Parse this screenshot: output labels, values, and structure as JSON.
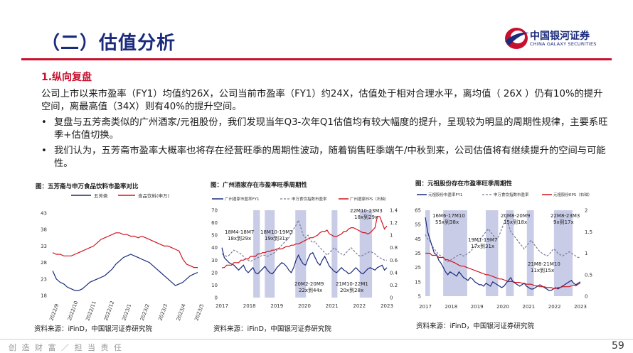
{
  "header": {
    "title": "（二）估值分析",
    "logo_cn": "中国银河证券",
    "logo_en": "CHINA GALAXY SECURITIES",
    "accent_color": "#c8102e",
    "title_color": "#1a2a7c"
  },
  "section_title": "1.纵向复盘",
  "paragraph": "公司上市以来市盈率（FY1）均值约26X，公司当前市盈率（FY1）约24X，估值处于相对合理水平，离均值（  26X  ）仍有10%的提升空间，离最高值（34X）则有40%的提升空间。",
  "bullets": [
    "复盘与五芳斋类似的广州酒家/元祖股份，我们发现当年Q3-次年Q1估值均有较大幅度的提升，呈现较为明显的周期性规律，主要系旺季+估值切换。",
    "我们认为，五芳斋市盈率大概率也将存在经营旺季的周期性波动，随着销售旺季端午/中秋到来，公司估值将有继续提升的空间与可能性。"
  ],
  "bullet_symbol": "•",
  "chart_data": [
    {
      "type": "line",
      "title": "图：五芳斋与申万食品饮料市盈率对比",
      "source": "资料来源：iFinD，中国银河证券研究院",
      "x_ticks": [
        "2022/9",
        "2022/10",
        "2022/11",
        "2022/12",
        "2023/1",
        "2023/2",
        "2023/3",
        "2023/4",
        "2023/5"
      ],
      "yticks": [
        "43",
        "38",
        "33",
        "28",
        "23",
        "18"
      ],
      "ylim": [
        18,
        43
      ],
      "series": [
        {
          "name": "五芳斋",
          "color": "#1a2a7c",
          "values": [
            25.5,
            23,
            22,
            21.5,
            20.5,
            20,
            19.5,
            19.5,
            20,
            21,
            22,
            22.5,
            23,
            23.5,
            24,
            25,
            26,
            27.5,
            28.5,
            29.5,
            30,
            30.5,
            30,
            29.5,
            29,
            28.5,
            28,
            27,
            26,
            25,
            24,
            23,
            22,
            21,
            21.5,
            22,
            23,
            24,
            24.5,
            25
          ]
        },
        {
          "name": "食品饮料(申万)",
          "color": "#d0141e",
          "values": [
            31,
            30.5,
            30.5,
            30,
            30,
            30,
            30.5,
            31,
            31.5,
            32,
            32.5,
            33,
            34,
            35,
            35.5,
            36,
            36.5,
            37,
            37,
            36.5,
            36.5,
            36,
            36,
            35.5,
            36,
            35.5,
            35,
            34.5,
            34,
            33.5,
            33,
            33,
            32.5,
            32,
            31.5,
            29,
            27.5,
            27,
            26.5,
            26.5
          ]
        }
      ]
    },
    {
      "type": "line",
      "title": "图：广州酒家存在市盈率旺季周期性",
      "source": "资料来源：iFinD，中国银河证券研究院",
      "x_ticks": [
        "2017",
        "2018",
        "2019",
        "2020",
        "2021",
        "2022",
        "2023"
      ],
      "yticks_left": [
        "70",
        "60",
        "50",
        "40",
        "30",
        "20",
        "10",
        "0"
      ],
      "yticks_right": [
        "1.4",
        "1.2",
        "1",
        "0.8",
        "0.6",
        "0.4",
        "0.2",
        "0"
      ],
      "ylim_left": [
        0,
        70
      ],
      "ylim_right": [
        0,
        1.4
      ],
      "series": [
        {
          "name": "广州酒家市盈率FY1",
          "color": "#1a2a7c",
          "values": [
            40,
            32,
            30,
            28,
            27,
            26,
            24,
            22,
            24,
            26,
            22,
            20,
            22,
            24,
            20,
            19,
            21,
            23,
            25,
            22,
            20,
            19,
            21,
            24,
            26,
            28,
            27,
            25,
            22,
            20,
            24,
            30,
            34,
            30,
            27,
            26,
            31,
            35,
            36,
            32,
            28,
            26,
            30,
            33,
            29,
            25,
            23,
            21,
            20,
            22,
            24,
            22,
            21,
            19,
            20,
            22,
            24,
            22,
            20,
            19,
            21,
            23,
            24,
            23,
            22,
            24,
            25,
            26,
            22,
            24
          ]
        },
        {
          "name": "申万食饮指数市盈率",
          "color": "#7a7a9a",
          "dash": true,
          "values": [
            35,
            34,
            33,
            34,
            36,
            38,
            37,
            36,
            35,
            33,
            31,
            30,
            29,
            30,
            31,
            32,
            33,
            34,
            34,
            33,
            34,
            35,
            36,
            38,
            40,
            42,
            44,
            46,
            48,
            52,
            55,
            58,
            62,
            56,
            50,
            48,
            50,
            46,
            44,
            45,
            42,
            40,
            38,
            36,
            34,
            36,
            38,
            40,
            38,
            36,
            35,
            34,
            36,
            38,
            40,
            38,
            36,
            34,
            33,
            34,
            35,
            36,
            37,
            36,
            35,
            33,
            32,
            31,
            30,
            30
          ]
        },
        {
          "name": "广州酒家EPS（右轴）",
          "color": "#d0141e",
          "values": [
            0.48,
            0.48,
            0.52,
            0.52,
            0.52,
            0.56,
            0.56,
            0.56,
            0.6,
            0.6,
            0.62,
            0.62,
            0.66,
            0.66,
            0.66,
            0.7,
            0.7,
            0.72,
            0.72,
            0.74,
            0.74,
            0.76,
            0.76,
            0.78,
            0.78,
            0.78,
            0.8,
            0.82,
            0.82,
            0.84,
            0.84,
            0.86,
            0.86,
            0.88,
            0.9,
            0.92,
            0.94,
            0.96,
            0.96,
            0.98,
            1.0,
            1.04,
            1.06,
            1.06,
            1.08,
            1.02,
            1.0,
            0.98,
            0.98,
            1.0,
            1.02,
            1.06,
            1.06,
            1.1,
            1.12,
            1.12,
            1.1,
            1.08,
            1.06,
            1.04,
            1.04,
            1.02,
            1.04,
            1.08,
            1.12,
            1.3,
            1.3,
            1.2,
            1.1,
            1.15
          ]
        }
      ],
      "annotations": [
        "22M10-23M3",
        "18x到29x",
        "18M4-18M7",
        "18x到29x",
        "18M10-19M3",
        "19x到31x",
        "20M2-20M9",
        "22x到44x",
        "21M10-22M1",
        "20x到28x"
      ]
    },
    {
      "type": "line",
      "title": "图：元祖股份存在市盈率旺季周期性",
      "source": "资料来源：iFinD，中国银河证券研究院",
      "x_ticks": [
        "2017",
        "2018",
        "2019",
        "2020",
        "2021",
        "2022",
        "2023"
      ],
      "yticks_left": [
        "65",
        "55",
        "45",
        "35",
        "25",
        "15",
        "5"
      ],
      "yticks_right": [
        "2",
        "1.5",
        "1",
        "0.5",
        "0"
      ],
      "ylim_left": [
        5,
        65
      ],
      "ylim_right": [
        0,
        2
      ],
      "series": [
        {
          "name": "元祖股份市盈率FY1",
          "color": "#1a2a7c",
          "values": [
            60,
            50,
            45,
            40,
            35,
            34,
            30,
            28,
            25,
            22,
            20,
            22,
            21,
            20,
            19,
            22,
            20,
            18,
            17,
            16,
            18,
            17,
            15,
            14,
            13,
            13,
            12,
            14,
            13,
            12,
            15,
            14,
            13,
            12,
            11,
            12,
            14,
            16,
            18,
            15,
            14,
            13,
            12,
            13,
            14,
            12,
            11,
            10,
            10,
            11,
            12,
            13,
            12,
            11,
            10,
            9,
            9,
            10,
            11,
            10,
            11,
            12,
            13,
            14,
            15,
            16,
            14,
            13,
            14,
            15
          ]
        },
        {
          "name": "申万食饮指数市盈率",
          "color": "#7a7a9a",
          "dash": true,
          "values": [
            48,
            45,
            44,
            40,
            38,
            36,
            34,
            33,
            32,
            30,
            29,
            30,
            31,
            32,
            33,
            34,
            34,
            33,
            34,
            35,
            36,
            38,
            40,
            42,
            44,
            46,
            48,
            50,
            52,
            50,
            48,
            46,
            45,
            48,
            52,
            56,
            60,
            55,
            50,
            48,
            46,
            44,
            42,
            40,
            38,
            40,
            42,
            44,
            42,
            40,
            38,
            36,
            35,
            34,
            33,
            34,
            36,
            38,
            37,
            35,
            34,
            33,
            34,
            35,
            36,
            35,
            34,
            33,
            32,
            32
          ]
        },
        {
          "name": "元祖股份EPS（右轴）",
          "color": "#d0141e",
          "values": [
            1.0,
            1.0,
            1.0,
            0.95,
            0.95,
            0.95,
            0.9,
            0.9,
            0.9,
            0.85,
            0.85,
            0.82,
            0.8,
            0.78,
            0.75,
            0.72,
            0.7,
            0.7,
            0.68,
            0.66,
            0.64,
            0.62,
            0.6,
            0.58,
            0.56,
            0.54,
            0.52,
            0.5,
            0.5,
            0.48,
            0.46,
            0.44,
            0.42,
            0.4,
            0.4,
            0.38,
            0.36,
            0.34,
            0.34,
            0.34,
            0.32,
            0.32,
            0.32,
            0.3,
            0.3,
            0.28,
            0.28,
            0.28,
            0.26,
            0.24,
            0.24,
            0.22,
            0.22,
            0.22,
            0.2,
            0.2,
            0.2,
            0.18,
            0.18,
            0.2,
            0.2,
            0.22,
            0.22,
            0.22,
            0.22,
            0.24,
            0.26,
            0.24,
            0.28,
            0.3
          ]
        }
      ],
      "annotations": [
        "20M8-20M9",
        "15x到18x",
        "22M8-23M3",
        "9x到17x",
        "16M6-17M10",
        "55x到38x",
        "19M1-19M7",
        "17x到31x",
        "21M8-21M10",
        "11x到15x"
      ]
    }
  ],
  "footer": {
    "slogan": "创 造 财 富 ／ 担 当 责 任",
    "page_number": "59"
  }
}
